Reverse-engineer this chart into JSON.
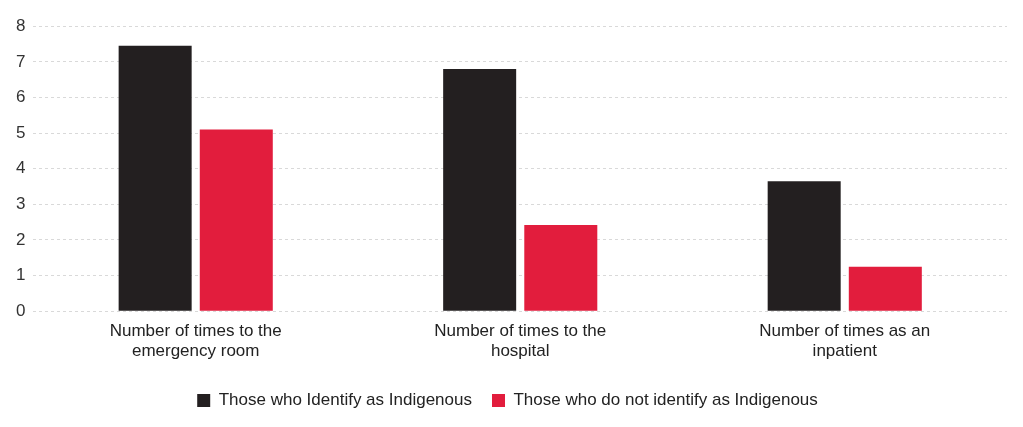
{
  "chart_data": {
    "type": "bar",
    "categories": [
      "Number of times to the emergency room",
      "Number of times to the hospital",
      "Number of times as an inpatient"
    ],
    "series": [
      {
        "name": "Those who Identify as Indigenous",
        "color": "#231f20",
        "values": [
          7.45,
          6.8,
          3.65
        ]
      },
      {
        "name": "Those who do not identify as Indigenous",
        "color": "#e21d3d",
        "values": [
          5.1,
          2.42,
          1.25
        ]
      }
    ],
    "ylim": [
      0,
      8
    ],
    "yticks": [
      0,
      1,
      2,
      3,
      4,
      5,
      6,
      7,
      8
    ],
    "grid": "y",
    "legend": "bottom"
  }
}
